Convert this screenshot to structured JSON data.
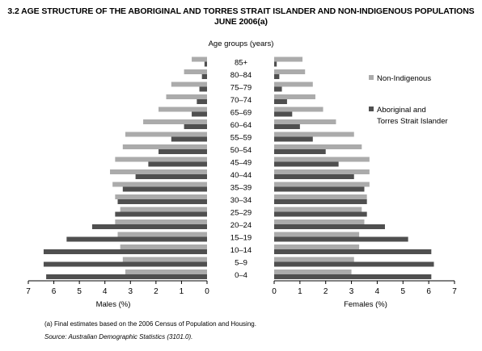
{
  "title_line1": "3.2 AGE STRUCTURE OF THE ABORIGINAL AND TORRES STRAIT ISLANDER AND NON-INDIGENOUS POPULATIONS",
  "title_line2": "JUNE 2006(a)",
  "footnote": "(a) Final estimates based on the 2006 Census of Population and Housing.",
  "source": "Source: Australian Demographic Statistics (3101.0).",
  "colors": {
    "non_indigenous": "#ababab",
    "indigenous": "#4f4f4f"
  },
  "chart_data": {
    "type": "bar",
    "orientation": "horizontal-pyramid",
    "title": "3.2 AGE STRUCTURE OF THE ABORIGINAL AND TORRES STRAIT ISLANDER AND NON-INDIGENOUS POPULATIONS JUNE 2006(a)",
    "category_label": "Age groups (years)",
    "categories": [
      "0–4",
      "5–9",
      "10–14",
      "15–19",
      "20–24",
      "25–29",
      "30–34",
      "35–39",
      "40–44",
      "45–49",
      "50–54",
      "55–59",
      "60–64",
      "65–69",
      "70–74",
      "75–79",
      "80–84",
      "85+"
    ],
    "legend": {
      "placement": "right",
      "entries": [
        "Non-Indigenous",
        "Aboriginal and Torres Strait Islander"
      ]
    },
    "males": {
      "xlabel": "Males (%)",
      "xlim": [
        0,
        7
      ],
      "ticks": [
        "7",
        "6",
        "5",
        "4",
        "3",
        "2",
        "1",
        "0"
      ],
      "series": [
        {
          "name": "Non-Indigenous",
          "values": [
            3.2,
            3.3,
            3.4,
            3.5,
            3.6,
            3.4,
            3.6,
            3.7,
            3.8,
            3.6,
            3.3,
            3.2,
            2.5,
            1.9,
            1.6,
            1.4,
            0.9,
            0.6
          ]
        },
        {
          "name": "Aboriginal and Torres Strait Islander",
          "values": [
            6.3,
            6.4,
            6.4,
            5.5,
            4.5,
            3.6,
            3.5,
            3.3,
            2.8,
            2.3,
            1.9,
            1.4,
            0.9,
            0.6,
            0.4,
            0.3,
            0.2,
            0.1
          ]
        }
      ]
    },
    "females": {
      "xlabel": "Females (%)",
      "xlim": [
        0,
        7
      ],
      "ticks": [
        "0",
        "1",
        "2",
        "3",
        "4",
        "5",
        "6",
        "7"
      ],
      "series": [
        {
          "name": "Non-Indigenous",
          "values": [
            3.0,
            3.1,
            3.3,
            3.3,
            3.5,
            3.4,
            3.6,
            3.7,
            3.7,
            3.7,
            3.4,
            3.1,
            2.4,
            1.9,
            1.6,
            1.5,
            1.2,
            1.1
          ]
        },
        {
          "name": "Aboriginal and Torres Strait Islander",
          "values": [
            6.1,
            6.2,
            6.1,
            5.2,
            4.3,
            3.6,
            3.6,
            3.5,
            3.1,
            2.5,
            2.0,
            1.5,
            1.0,
            0.7,
            0.5,
            0.3,
            0.2,
            0.1
          ]
        }
      ]
    }
  }
}
